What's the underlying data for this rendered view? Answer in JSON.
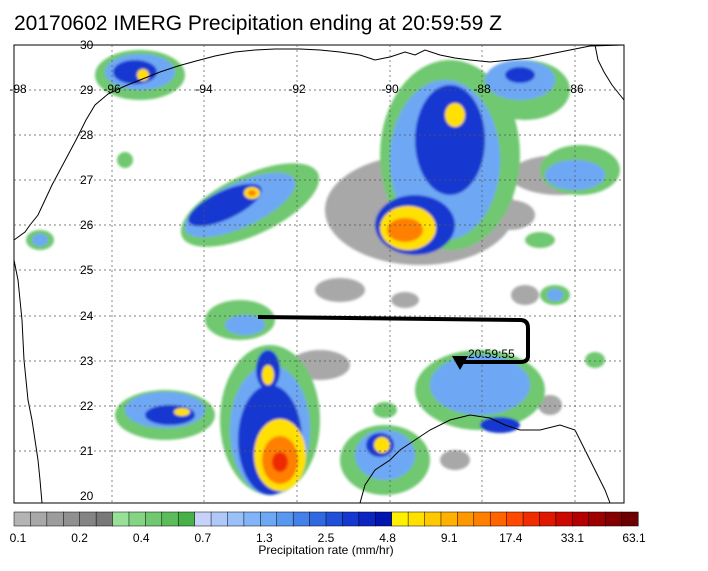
{
  "title": "20170602 IMERG Precipitation ending at 20:59:59 Z",
  "map": {
    "lat_ticks": [
      "30",
      "29",
      "28",
      "27",
      "26",
      "25",
      "24",
      "23",
      "22",
      "21",
      "20"
    ],
    "lon_ticks": [
      "-98",
      "-96",
      "-94",
      "-92",
      "-90",
      "-88",
      "-86"
    ],
    "track_label": "20:59:55",
    "background": "#ffffff",
    "coast_color": "#000000",
    "grid_color": "#555555"
  },
  "colorbar": {
    "title": "Precipitation rate (mm/hr)",
    "labels": [
      "0.1",
      "0.2",
      "0.4",
      "0.7",
      "1.3",
      "2.5",
      "4.8",
      "9.1",
      "17.4",
      "33.1",
      "63.1"
    ],
    "colors": [
      "#b4b4b4",
      "#a8a8a8",
      "#9c9c9c",
      "#909090",
      "#848484",
      "#787878",
      "#98e098",
      "#84d484",
      "#70c870",
      "#5cbc5c",
      "#48b048",
      "#c8d2f8",
      "#b0c8f8",
      "#9ac0f8",
      "#84b4f8",
      "#6ea8f4",
      "#5898f0",
      "#4480e8",
      "#3068e0",
      "#2050d8",
      "#1438d0",
      "#0c24c0",
      "#0014b0",
      "#fff000",
      "#ffe000",
      "#ffc800",
      "#ffb000",
      "#ff9800",
      "#ff8000",
      "#ff6400",
      "#ff4800",
      "#f02c00",
      "#e01800",
      "#cc0800",
      "#b40000",
      "#9c0000",
      "#840000",
      "#6c0000"
    ]
  }
}
